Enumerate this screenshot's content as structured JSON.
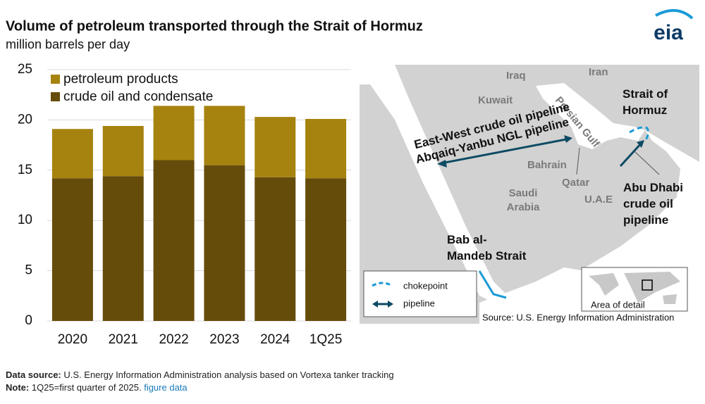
{
  "chart_data": {
    "type": "stacked-bar",
    "title": "Volume of petroleum transported through the Strait of Hormuz",
    "subtitle": "million barrels per day",
    "categories": [
      "2020",
      "2021",
      "2022",
      "2023",
      "2024",
      "1Q25"
    ],
    "series": [
      {
        "name": "crude oil and condensate",
        "color": "#664c0b",
        "values": [
          14.2,
          14.4,
          16.0,
          15.5,
          14.3,
          14.2
        ]
      },
      {
        "name": "petroleum products",
        "color": "#a6820f",
        "values": [
          4.9,
          5.0,
          5.4,
          5.9,
          6.0,
          5.9
        ]
      }
    ],
    "ylim": [
      0,
      25
    ],
    "yticks": [
      0,
      5,
      10,
      15,
      20,
      25
    ],
    "grid": true
  },
  "logo": "eia",
  "map": {
    "iraq": "Iraq",
    "iran": "Iran",
    "kuwait": "Kuwait",
    "persian_gulf": "Persian Gulf",
    "strait_of_hormuz": [
      "Strait of",
      "Hormuz"
    ],
    "east_west": "East-West crude oil pipeline",
    "abqaiq": "Abqaiq-Yanbu NGL pipeline",
    "bahrain": "Bahrain",
    "qatar": "Qatar",
    "saudi_arabia": [
      "Saudi",
      "Arabia"
    ],
    "uae": "U.A.E",
    "abu_dhabi": [
      "Abu Dhabi",
      "crude oil",
      "pipeline"
    ],
    "bab_al_mandeb": [
      "Bab al-",
      "Mandeb Strait"
    ],
    "legend_chokepoint": "chokepoint",
    "legend_pipeline": "pipeline",
    "area_of_detail": "Area of detail",
    "source": "Source: U.S. Energy Information Administration"
  },
  "footer": {
    "source_label": "Data source:",
    "source_text": "U.S. Energy Information Administration analysis based on Vortexa tanker tracking",
    "note_label": "Note:",
    "note_text": "1Q25=first quarter of 2025.",
    "link": "figure data"
  }
}
